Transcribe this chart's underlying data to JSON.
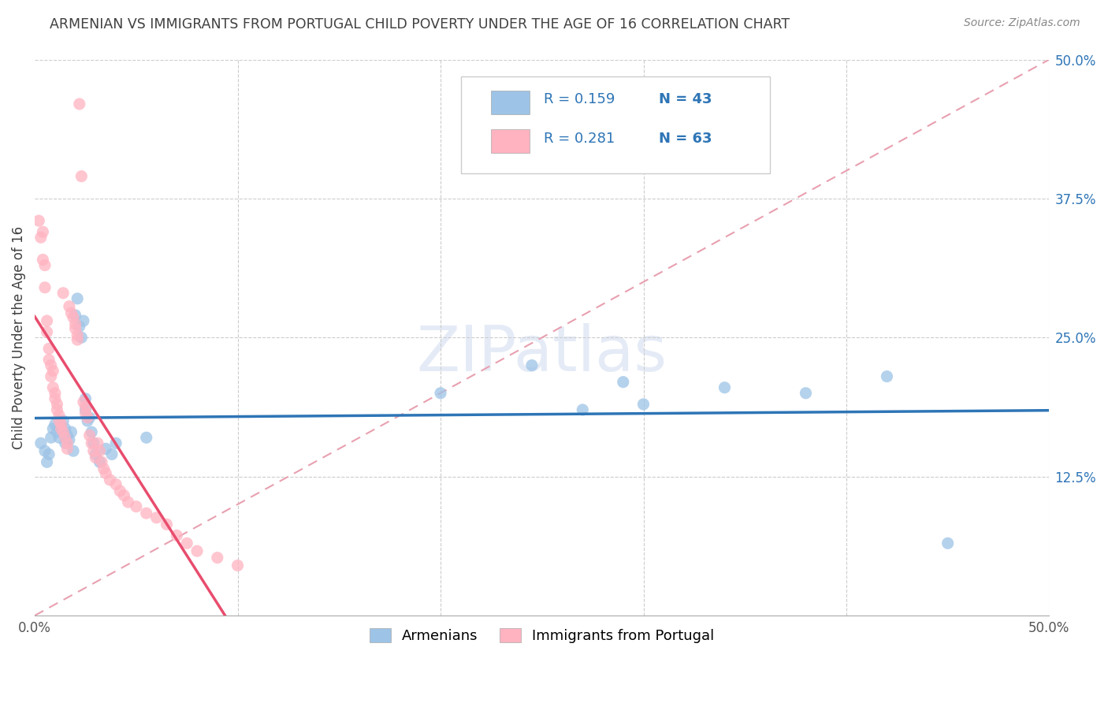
{
  "title": "ARMENIAN VS IMMIGRANTS FROM PORTUGAL CHILD POVERTY UNDER THE AGE OF 16 CORRELATION CHART",
  "source": "Source: ZipAtlas.com",
  "ylabel": "Child Poverty Under the Age of 16",
  "xlim": [
    0.0,
    0.5
  ],
  "ylim": [
    0.0,
    0.5
  ],
  "legend_r_armenian": "0.159",
  "legend_n_armenian": "43",
  "legend_r_portugal": "0.281",
  "legend_n_portugal": "63",
  "armenian_color": "#9DC3E6",
  "portugal_color": "#FFB3C1",
  "armenian_trend_color": "#2E75B6",
  "portugal_trend_color": "#E84D6E",
  "dashed_line_color": "#E8A0B0",
  "background_color": "#FFFFFF",
  "grid_color": "#CCCCCC",
  "legend_text_color": "#2E75B6",
  "title_color": "#404040",
  "source_color": "#888888",
  "armenians_scatter": [
    [
      0.003,
      0.155
    ],
    [
      0.005,
      0.148
    ],
    [
      0.006,
      0.138
    ],
    [
      0.007,
      0.145
    ],
    [
      0.008,
      0.16
    ],
    [
      0.009,
      0.168
    ],
    [
      0.01,
      0.172
    ],
    [
      0.011,
      0.165
    ],
    [
      0.012,
      0.16
    ],
    [
      0.013,
      0.17
    ],
    [
      0.014,
      0.175
    ],
    [
      0.015,
      0.168
    ],
    [
      0.015,
      0.155
    ],
    [
      0.016,
      0.162
    ],
    [
      0.017,
      0.158
    ],
    [
      0.018,
      0.165
    ],
    [
      0.019,
      0.148
    ],
    [
      0.02,
      0.27
    ],
    [
      0.021,
      0.285
    ],
    [
      0.022,
      0.26
    ],
    [
      0.023,
      0.25
    ],
    [
      0.024,
      0.265
    ],
    [
      0.025,
      0.195
    ],
    [
      0.025,
      0.185
    ],
    [
      0.026,
      0.175
    ],
    [
      0.027,
      0.178
    ],
    [
      0.028,
      0.165
    ],
    [
      0.029,
      0.155
    ],
    [
      0.03,
      0.145
    ],
    [
      0.032,
      0.138
    ],
    [
      0.035,
      0.15
    ],
    [
      0.038,
      0.145
    ],
    [
      0.04,
      0.155
    ],
    [
      0.055,
      0.16
    ],
    [
      0.2,
      0.2
    ],
    [
      0.245,
      0.225
    ],
    [
      0.27,
      0.185
    ],
    [
      0.29,
      0.21
    ],
    [
      0.3,
      0.19
    ],
    [
      0.34,
      0.205
    ],
    [
      0.38,
      0.2
    ],
    [
      0.42,
      0.215
    ],
    [
      0.45,
      0.065
    ]
  ],
  "portugal_scatter": [
    [
      0.002,
      0.355
    ],
    [
      0.003,
      0.34
    ],
    [
      0.004,
      0.345
    ],
    [
      0.004,
      0.32
    ],
    [
      0.005,
      0.315
    ],
    [
      0.005,
      0.295
    ],
    [
      0.006,
      0.265
    ],
    [
      0.006,
      0.255
    ],
    [
      0.007,
      0.24
    ],
    [
      0.007,
      0.23
    ],
    [
      0.008,
      0.225
    ],
    [
      0.008,
      0.215
    ],
    [
      0.009,
      0.22
    ],
    [
      0.009,
      0.205
    ],
    [
      0.01,
      0.2
    ],
    [
      0.01,
      0.195
    ],
    [
      0.011,
      0.19
    ],
    [
      0.011,
      0.185
    ],
    [
      0.012,
      0.18
    ],
    [
      0.012,
      0.175
    ],
    [
      0.013,
      0.172
    ],
    [
      0.013,
      0.168
    ],
    [
      0.014,
      0.29
    ],
    [
      0.014,
      0.165
    ],
    [
      0.015,
      0.16
    ],
    [
      0.016,
      0.155
    ],
    [
      0.016,
      0.15
    ],
    [
      0.017,
      0.278
    ],
    [
      0.018,
      0.272
    ],
    [
      0.019,
      0.268
    ],
    [
      0.02,
      0.262
    ],
    [
      0.02,
      0.258
    ],
    [
      0.021,
      0.252
    ],
    [
      0.021,
      0.248
    ],
    [
      0.022,
      0.46
    ],
    [
      0.023,
      0.395
    ],
    [
      0.024,
      0.192
    ],
    [
      0.025,
      0.188
    ],
    [
      0.025,
      0.182
    ],
    [
      0.026,
      0.178
    ],
    [
      0.027,
      0.162
    ],
    [
      0.028,
      0.155
    ],
    [
      0.029,
      0.148
    ],
    [
      0.03,
      0.142
    ],
    [
      0.031,
      0.155
    ],
    [
      0.032,
      0.148
    ],
    [
      0.033,
      0.138
    ],
    [
      0.034,
      0.132
    ],
    [
      0.035,
      0.128
    ],
    [
      0.037,
      0.122
    ],
    [
      0.04,
      0.118
    ],
    [
      0.042,
      0.112
    ],
    [
      0.044,
      0.108
    ],
    [
      0.046,
      0.102
    ],
    [
      0.05,
      0.098
    ],
    [
      0.055,
      0.092
    ],
    [
      0.06,
      0.088
    ],
    [
      0.065,
      0.082
    ],
    [
      0.07,
      0.072
    ],
    [
      0.075,
      0.065
    ],
    [
      0.08,
      0.058
    ],
    [
      0.09,
      0.052
    ],
    [
      0.1,
      0.045
    ]
  ]
}
